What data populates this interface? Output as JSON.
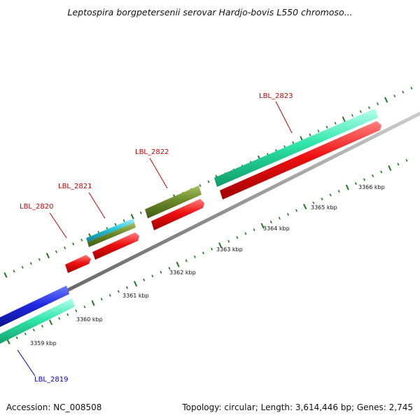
{
  "title": "Leptospira borgpetersenii serovar Hardjo-bovis L550 chromoso...",
  "footer": {
    "accession": "Accession: NC_008508",
    "summary": "Topology: circular; Length: 3,614,446 bp; Genes: 2,745"
  },
  "ticks": [
    {
      "label": "3359 kbp"
    },
    {
      "label": "3360 kbp"
    },
    {
      "label": "3361 kbp"
    },
    {
      "label": "3362 kbp"
    },
    {
      "label": "3363 kbp"
    },
    {
      "label": "3364 kbp"
    },
    {
      "label": "3365 kbp"
    },
    {
      "label": "3366 kbp"
    }
  ],
  "genes": [
    {
      "label": "LBL_2819",
      "color": "#0000cc"
    },
    {
      "label": "LBL_2820",
      "color": "#cc0000"
    },
    {
      "label": "LBL_2821",
      "color": "#cc0000"
    },
    {
      "label": "LBL_2822",
      "color": "#cc0000"
    },
    {
      "label": "LBL_2823",
      "color": "#cc0000"
    }
  ],
  "colors": {
    "backbone": "#8c8c8c",
    "forward_cds": "#1e40e6",
    "reverse_cds": "#e81010",
    "gene_teal": "#2ee6a8",
    "gene_olive": "#6b8a2a",
    "gene_cyan": "#27c4d8",
    "tick_green": "#1e7a1e"
  }
}
